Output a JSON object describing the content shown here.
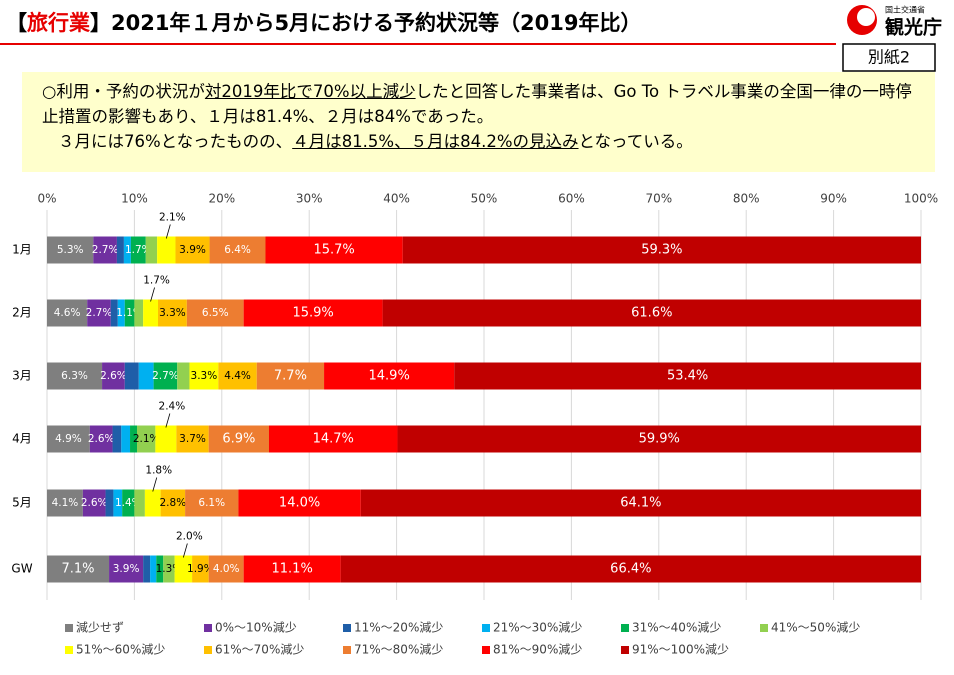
{
  "header": {
    "title_parts": [
      "【",
      "旅行業",
      "】2021年１月から5月における予約状況等（2019年比）"
    ],
    "logo_ministry": "国土交通省",
    "logo_agency": "観光庁",
    "badge": "別紙2"
  },
  "note": {
    "line1": [
      "○利用・予約の状況が",
      "対2019年比で70%以上減少",
      "したと回答した事業者は、Go To トラベル事業の全国一律の一時停止措置の影響もあり、１月は81.4%、２月は84%であった。"
    ],
    "line2": [
      "３月には76%となったものの、",
      "４月は81.5%、５月は84.2%の見込み",
      "となっている。"
    ]
  },
  "chart_data": {
    "type": "stacked_barh",
    "categories": [
      "1月",
      "2月",
      "3月",
      "4月",
      "5月",
      "GW"
    ],
    "xlim": [
      0,
      100
    ],
    "xticks": [
      {
        "value": 0,
        "label": "0%"
      },
      {
        "value": 10,
        "label": "10%"
      },
      {
        "value": 20,
        "label": "20%"
      },
      {
        "value": 30,
        "label": "30%"
      },
      {
        "value": 40,
        "label": "40%"
      },
      {
        "value": 50,
        "label": "50%"
      },
      {
        "value": 60,
        "label": "60%"
      },
      {
        "value": 70,
        "label": "70%"
      },
      {
        "value": 80,
        "label": "80%"
      },
      {
        "value": 90,
        "label": "90%"
      },
      {
        "value": 100,
        "label": "100%"
      }
    ],
    "grid": true,
    "legend": "bottom",
    "series": [
      {
        "name": "減少せず",
        "color": "#7f7f7f",
        "values": [
          5.3,
          4.6,
          6.3,
          4.9,
          4.1,
          7.1
        ],
        "value_labels": [
          "5.3%",
          "4.6%",
          "6.3%",
          "4.9%",
          "4.1%",
          "7.1%"
        ]
      },
      {
        "name": "0%～10%減少",
        "color": "#7030a0",
        "values": [
          2.7,
          2.7,
          2.6,
          2.6,
          2.6,
          3.9
        ],
        "value_labels": [
          "2.7%",
          "2.7%",
          "2.6%",
          "2.6%",
          "2.6%",
          "3.9%"
        ]
      },
      {
        "name": "11%～20%減少",
        "color": "#1f5ea8",
        "values": [
          0.8,
          0.8,
          1.6,
          1.0,
          0.9,
          0.8
        ],
        "value_labels": [
          null,
          null,
          null,
          null,
          null,
          null
        ]
      },
      {
        "name": "21%～30%減少",
        "color": "#00b0f0",
        "values": [
          0.8,
          0.8,
          1.7,
          1.0,
          1.0,
          0.7
        ],
        "value_labels": [
          null,
          null,
          null,
          null,
          null,
          null
        ]
      },
      {
        "name": "31%～40%減少",
        "color": "#00b050",
        "values": [
          1.7,
          1.1,
          2.7,
          0.8,
          1.4,
          0.8
        ],
        "value_labels": [
          "1.7%",
          "1.1%",
          "2.7%",
          null,
          "1.4%",
          null
        ]
      },
      {
        "name": "41%～50%減少",
        "color": "#92d050",
        "values": [
          1.3,
          1.0,
          1.4,
          2.1,
          1.2,
          1.3
        ],
        "value_labels": [
          null,
          null,
          null,
          "2.1%",
          null,
          "1.3%"
        ]
      },
      {
        "name": "51%～60%減少",
        "color": "#ffff00",
        "values": [
          2.1,
          1.7,
          3.3,
          2.4,
          1.8,
          2.0
        ],
        "value_labels": [
          "2.1%",
          "1.7%",
          "3.3%",
          "2.4%",
          "1.8%",
          "2.0%"
        ]
      },
      {
        "name": "61%～70%減少",
        "color": "#ffc000",
        "values": [
          3.9,
          3.3,
          4.4,
          3.7,
          2.8,
          1.9
        ],
        "value_labels": [
          "3.9%",
          "3.3%",
          "4.4%",
          "3.7%",
          "2.8%",
          "1.9%"
        ]
      },
      {
        "name": "71%～80%減少",
        "color": "#ed7d31",
        "values": [
          6.4,
          6.5,
          7.7,
          6.9,
          6.1,
          4.0
        ],
        "value_labels": [
          "6.4%",
          "6.5%",
          "7.7%",
          "6.9%",
          "6.1%",
          "4.0%"
        ]
      },
      {
        "name": "81%～90%減少",
        "color": "#ff0000",
        "values": [
          15.7,
          15.9,
          14.9,
          14.7,
          14.0,
          11.1
        ],
        "value_labels": [
          "15.7%",
          "15.9%",
          "14.9%",
          "14.7%",
          "14.0%",
          "11.1%"
        ]
      },
      {
        "name": "91%～100%減少",
        "color": "#c00000",
        "values": [
          59.3,
          61.6,
          53.4,
          59.9,
          64.1,
          66.4
        ],
        "value_labels": [
          "59.3%",
          "61.6%",
          "53.4%",
          "59.9%",
          "64.1%",
          "66.4%"
        ]
      }
    ]
  }
}
